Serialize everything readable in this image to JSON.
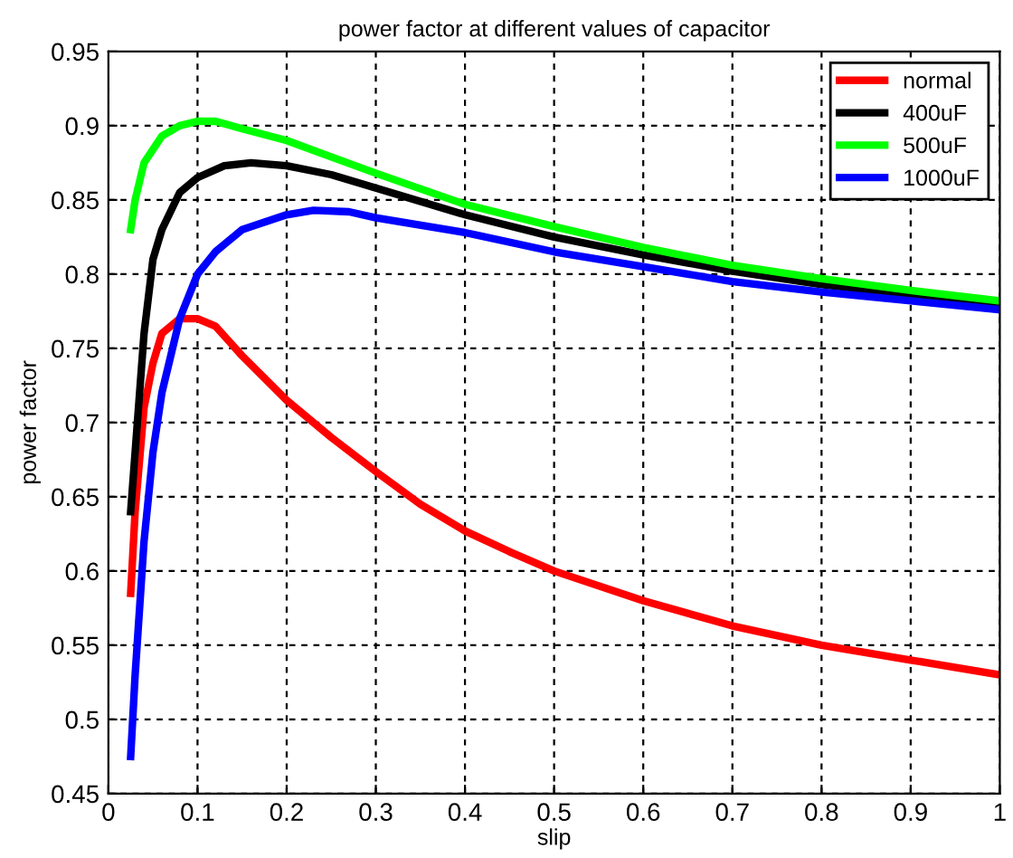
{
  "chart_data": {
    "type": "line",
    "title": "power factor at different values of capacitor",
    "xlabel": "slip",
    "ylabel": "power factor",
    "xlim": [
      0,
      1
    ],
    "xticks": [
      0,
      0.1,
      0.2,
      0.3,
      0.4,
      0.5,
      0.6,
      0.7,
      0.8,
      0.9,
      1
    ],
    "ylim": [
      0.45,
      0.95
    ],
    "yticks": [
      0.45,
      0.5,
      0.55,
      0.6,
      0.65,
      0.7,
      0.75,
      0.8,
      0.85,
      0.9,
      0.95
    ],
    "grid": true,
    "legend": "top right",
    "line_style": "solid",
    "marker": "none",
    "series": [
      {
        "name": "normal",
        "color": "#ff0000",
        "x": [
          0.025,
          0.03,
          0.04,
          0.05,
          0.06,
          0.08,
          0.1,
          0.12,
          0.15,
          0.2,
          0.25,
          0.3,
          0.35,
          0.4,
          0.45,
          0.5,
          0.6,
          0.7,
          0.8,
          0.9,
          1.0
        ],
        "values": [
          0.585,
          0.64,
          0.71,
          0.74,
          0.76,
          0.77,
          0.77,
          0.765,
          0.745,
          0.715,
          0.69,
          0.667,
          0.645,
          0.627,
          0.613,
          0.6,
          0.58,
          0.563,
          0.55,
          0.54,
          0.53
        ]
      },
      {
        "name": "400uF",
        "color": "#000000",
        "x": [
          0.025,
          0.03,
          0.04,
          0.05,
          0.06,
          0.08,
          0.1,
          0.13,
          0.16,
          0.2,
          0.25,
          0.3,
          0.4,
          0.5,
          0.6,
          0.7,
          0.8,
          0.9,
          1.0
        ],
        "values": [
          0.64,
          0.68,
          0.76,
          0.81,
          0.83,
          0.855,
          0.865,
          0.873,
          0.875,
          0.873,
          0.867,
          0.858,
          0.84,
          0.825,
          0.813,
          0.802,
          0.793,
          0.786,
          0.78
        ]
      },
      {
        "name": "500uF",
        "color": "#00ff00",
        "x": [
          0.025,
          0.03,
          0.04,
          0.06,
          0.08,
          0.1,
          0.12,
          0.15,
          0.2,
          0.25,
          0.3,
          0.4,
          0.5,
          0.6,
          0.7,
          0.8,
          0.9,
          1.0
        ],
        "values": [
          0.83,
          0.85,
          0.875,
          0.893,
          0.9,
          0.903,
          0.903,
          0.898,
          0.89,
          0.879,
          0.868,
          0.847,
          0.832,
          0.818,
          0.806,
          0.797,
          0.789,
          0.782
        ]
      },
      {
        "name": "1000uF",
        "color": "#0000ff",
        "x": [
          0.025,
          0.03,
          0.04,
          0.05,
          0.06,
          0.08,
          0.1,
          0.12,
          0.15,
          0.2,
          0.23,
          0.27,
          0.3,
          0.4,
          0.5,
          0.6,
          0.7,
          0.8,
          0.9,
          1.0
        ],
        "values": [
          0.475,
          0.53,
          0.62,
          0.68,
          0.72,
          0.77,
          0.8,
          0.815,
          0.83,
          0.84,
          0.843,
          0.842,
          0.838,
          0.828,
          0.815,
          0.805,
          0.795,
          0.788,
          0.782,
          0.776
        ]
      }
    ]
  }
}
